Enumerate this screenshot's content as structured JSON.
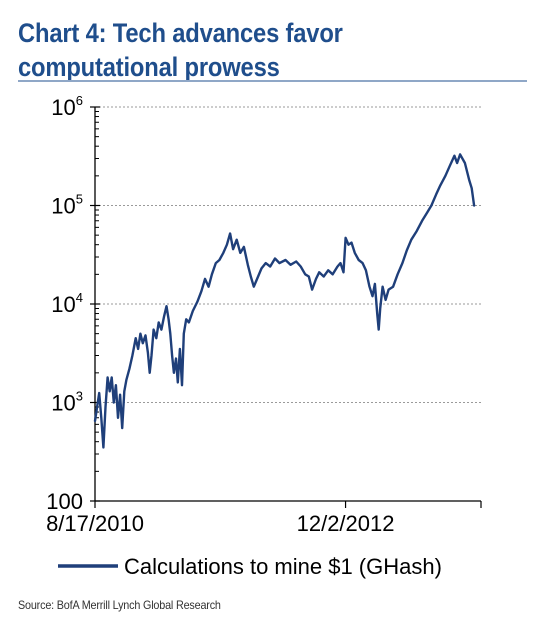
{
  "chart_data": {
    "type": "line",
    "title": "Chart 4: Tech advances favor computational prowess",
    "xlabel": "",
    "ylabel": "",
    "y_scale": "log",
    "ylim": [
      100,
      1000000
    ],
    "y_ticks": [
      {
        "value": 100,
        "base": "100",
        "exp": ""
      },
      {
        "value": 1000,
        "base": "10",
        "exp": "3"
      },
      {
        "value": 10000,
        "base": "10",
        "exp": "4"
      },
      {
        "value": 100000,
        "base": "10",
        "exp": "5"
      },
      {
        "value": 1000000,
        "base": "10",
        "exp": "6"
      }
    ],
    "grid": "horizontal dashed",
    "x_tick_labels": [
      {
        "label": "8/17/2010",
        "date": "2010-08-17"
      },
      {
        "label": "12/2/2012",
        "date": "2012-12-02"
      }
    ],
    "xlim": [
      "2010-08-17",
      "2014-02-28"
    ],
    "legend_position": "bottom",
    "series": [
      {
        "name": "Calculations to mine $1 (GHash)",
        "color": "#1f3f7a",
        "points": [
          [
            "2010-08-17",
            650
          ],
          [
            "2010-08-24",
            900
          ],
          [
            "2010-08-31",
            1250
          ],
          [
            "2010-09-07",
            700
          ],
          [
            "2010-09-14",
            350
          ],
          [
            "2010-09-21",
            900
          ],
          [
            "2010-09-28",
            1800
          ],
          [
            "2010-10-05",
            1300
          ],
          [
            "2010-10-12",
            1800
          ],
          [
            "2010-10-19",
            1000
          ],
          [
            "2010-10-26",
            1500
          ],
          [
            "2010-11-02",
            700
          ],
          [
            "2010-11-09",
            1200
          ],
          [
            "2010-11-16",
            550
          ],
          [
            "2010-11-23",
            1300
          ],
          [
            "2010-11-30",
            1700
          ],
          [
            "2010-12-10",
            2200
          ],
          [
            "2010-12-20",
            3000
          ],
          [
            "2010-12-31",
            4500
          ],
          [
            "2011-01-08",
            3500
          ],
          [
            "2011-01-16",
            5000
          ],
          [
            "2011-01-24",
            4000
          ],
          [
            "2011-02-02",
            4800
          ],
          [
            "2011-02-10",
            3200
          ],
          [
            "2011-02-16",
            2000
          ],
          [
            "2011-02-22",
            3000
          ],
          [
            "2011-03-01",
            5500
          ],
          [
            "2011-03-10",
            4500
          ],
          [
            "2011-03-18",
            6500
          ],
          [
            "2011-03-27",
            5500
          ],
          [
            "2011-04-05",
            7500
          ],
          [
            "2011-04-13",
            9500
          ],
          [
            "2011-04-20",
            7000
          ],
          [
            "2011-04-26",
            5000
          ],
          [
            "2011-05-02",
            3000
          ],
          [
            "2011-05-08",
            2000
          ],
          [
            "2011-05-15",
            2800
          ],
          [
            "2011-05-21",
            1600
          ],
          [
            "2011-05-28",
            3500
          ],
          [
            "2011-06-04",
            1500
          ],
          [
            "2011-06-10",
            5000
          ],
          [
            "2011-06-18",
            7000
          ],
          [
            "2011-06-27",
            6500
          ],
          [
            "2011-07-10",
            8500
          ],
          [
            "2011-07-25",
            10500
          ],
          [
            "2011-08-08",
            13500
          ],
          [
            "2011-08-20",
            18000
          ],
          [
            "2011-09-01",
            15000
          ],
          [
            "2011-09-12",
            20000
          ],
          [
            "2011-09-25",
            26000
          ],
          [
            "2011-10-07",
            28000
          ],
          [
            "2011-10-20",
            33000
          ],
          [
            "2011-11-01",
            40000
          ],
          [
            "2011-11-12",
            52000
          ],
          [
            "2011-11-22",
            36000
          ],
          [
            "2011-12-04",
            45000
          ],
          [
            "2011-12-16",
            33000
          ],
          [
            "2011-12-28",
            38000
          ],
          [
            "2012-01-10",
            25000
          ],
          [
            "2012-01-20",
            19000
          ],
          [
            "2012-01-30",
            15000
          ],
          [
            "2012-02-10",
            18000
          ],
          [
            "2012-02-25",
            23000
          ],
          [
            "2012-03-10",
            26000
          ],
          [
            "2012-03-25",
            24000
          ],
          [
            "2012-04-10",
            29000
          ],
          [
            "2012-04-25",
            26000
          ],
          [
            "2012-05-15",
            28000
          ],
          [
            "2012-06-01",
            25000
          ],
          [
            "2012-06-20",
            27000
          ],
          [
            "2012-07-05",
            24000
          ],
          [
            "2012-07-20",
            20000
          ],
          [
            "2012-08-01",
            19000
          ],
          [
            "2012-08-12",
            14000
          ],
          [
            "2012-08-25",
            18000
          ],
          [
            "2012-09-05",
            21000
          ],
          [
            "2012-09-20",
            19000
          ],
          [
            "2012-10-05",
            22000
          ],
          [
            "2012-10-20",
            20000
          ],
          [
            "2012-11-05",
            24000
          ],
          [
            "2012-11-15",
            26000
          ],
          [
            "2012-11-25",
            21000
          ],
          [
            "2012-12-02",
            47000
          ],
          [
            "2012-12-12",
            40000
          ],
          [
            "2012-12-22",
            42000
          ],
          [
            "2013-01-02",
            33000
          ],
          [
            "2013-01-15",
            28000
          ],
          [
            "2013-01-28",
            26000
          ],
          [
            "2013-02-08",
            22000
          ],
          [
            "2013-02-20",
            15000
          ],
          [
            "2013-03-02",
            12000
          ],
          [
            "2013-03-10",
            16000
          ],
          [
            "2013-03-18",
            8000
          ],
          [
            "2013-03-23",
            5500
          ],
          [
            "2013-03-28",
            9000
          ],
          [
            "2013-04-05",
            15000
          ],
          [
            "2013-04-15",
            11000
          ],
          [
            "2013-04-25",
            14000
          ],
          [
            "2013-05-10",
            15000
          ],
          [
            "2013-05-25",
            20000
          ],
          [
            "2013-06-10",
            26000
          ],
          [
            "2013-06-25",
            35000
          ],
          [
            "2013-07-10",
            45000
          ],
          [
            "2013-07-28",
            55000
          ],
          [
            "2013-08-15",
            70000
          ],
          [
            "2013-09-01",
            85000
          ],
          [
            "2013-09-15",
            100000
          ],
          [
            "2013-10-01",
            130000
          ],
          [
            "2013-10-15",
            160000
          ],
          [
            "2013-11-01",
            200000
          ],
          [
            "2013-11-15",
            250000
          ],
          [
            "2013-12-01",
            320000
          ],
          [
            "2013-12-10",
            270000
          ],
          [
            "2013-12-20",
            330000
          ],
          [
            "2014-01-05",
            270000
          ],
          [
            "2014-01-20",
            180000
          ],
          [
            "2014-01-28",
            150000
          ],
          [
            "2014-02-05",
            100000
          ]
        ]
      }
    ]
  },
  "source_note": "Source: BofA Merrill Lynch Global Research"
}
